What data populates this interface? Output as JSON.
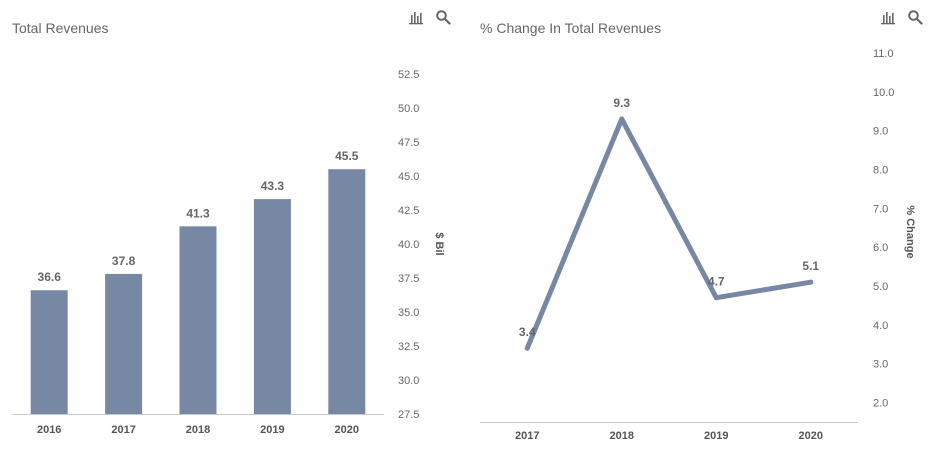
{
  "toolbar": {
    "chart_icon": "bar-chart-icon",
    "search_icon": "search-icon"
  },
  "colors": {
    "series": "#7788a4",
    "axis": "#c9c9c9",
    "text": "#666666"
  },
  "chart_data": [
    {
      "type": "bar",
      "title": "Total Revenues",
      "categories": [
        "2016",
        "2017",
        "2018",
        "2019",
        "2020"
      ],
      "values": [
        36.6,
        37.8,
        41.3,
        43.3,
        45.5
      ],
      "value_labels": [
        "36.6",
        "37.8",
        "41.3",
        "43.3",
        "45.5"
      ],
      "ylabel": "$ Bil",
      "ylim": [
        27.5,
        52.5
      ],
      "yticks": [
        "27.5",
        "30.0",
        "32.5",
        "35.0",
        "37.5",
        "40.0",
        "42.5",
        "45.0",
        "47.5",
        "50.0",
        "52.5"
      ],
      "y_axis_side": "right",
      "grid": false,
      "legend": "none"
    },
    {
      "type": "line",
      "title": "% Change In Total Revenues",
      "categories": [
        "2017",
        "2018",
        "2019",
        "2020"
      ],
      "values": [
        3.4,
        9.3,
        4.7,
        5.1
      ],
      "value_labels": [
        "3.4",
        "9.3",
        "4.7",
        "5.1"
      ],
      "ylabel": "% Change",
      "ylim": [
        1.5,
        11.0
      ],
      "yticks": [
        "2.0",
        "3.0",
        "4.0",
        "5.0",
        "6.0",
        "7.0",
        "8.0",
        "9.0",
        "10.0",
        "11.0"
      ],
      "y_axis_side": "right",
      "grid": false,
      "legend": "none"
    }
  ]
}
